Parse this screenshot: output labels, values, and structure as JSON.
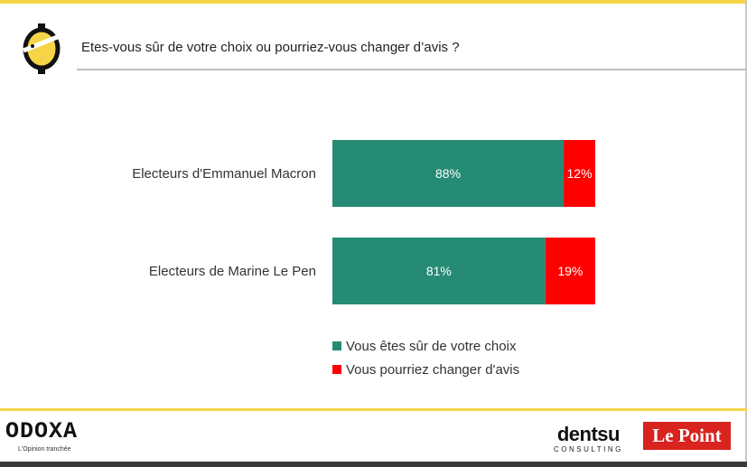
{
  "header": {
    "question": "Etes-vous sûr de votre choix ou pourriez-vous changer d’avis ?",
    "logo_icon": "odoxa-face-icon"
  },
  "chart_data": {
    "type": "bar",
    "orientation": "horizontal",
    "stacked": true,
    "categories": [
      "Electeurs d'Emmanuel Macron",
      "Electeurs de Marine Le Pen"
    ],
    "series": [
      {
        "name": "Vous êtes sûr de votre choix",
        "values": [
          88,
          81
        ],
        "labels": [
          "88%",
          "81%"
        ],
        "color": "#268b74"
      },
      {
        "name": "Vous pourriez changer d'avis",
        "values": [
          12,
          19
        ],
        "labels": [
          "12%",
          "19%"
        ],
        "color": "#ff0000"
      }
    ],
    "xlim": [
      0,
      100
    ],
    "legend_position": "bottom",
    "grid": false
  },
  "footer": {
    "odoxa": {
      "name": "ODOXA",
      "tagline": "L'Opinion tranchée"
    },
    "dentsu": {
      "name": "dentsu",
      "sub": "CONSULTING"
    },
    "lepoint": {
      "name": "Le Point"
    },
    "colors": {
      "accent": "#f5d547",
      "lepoint_red": "#d8231f"
    }
  }
}
